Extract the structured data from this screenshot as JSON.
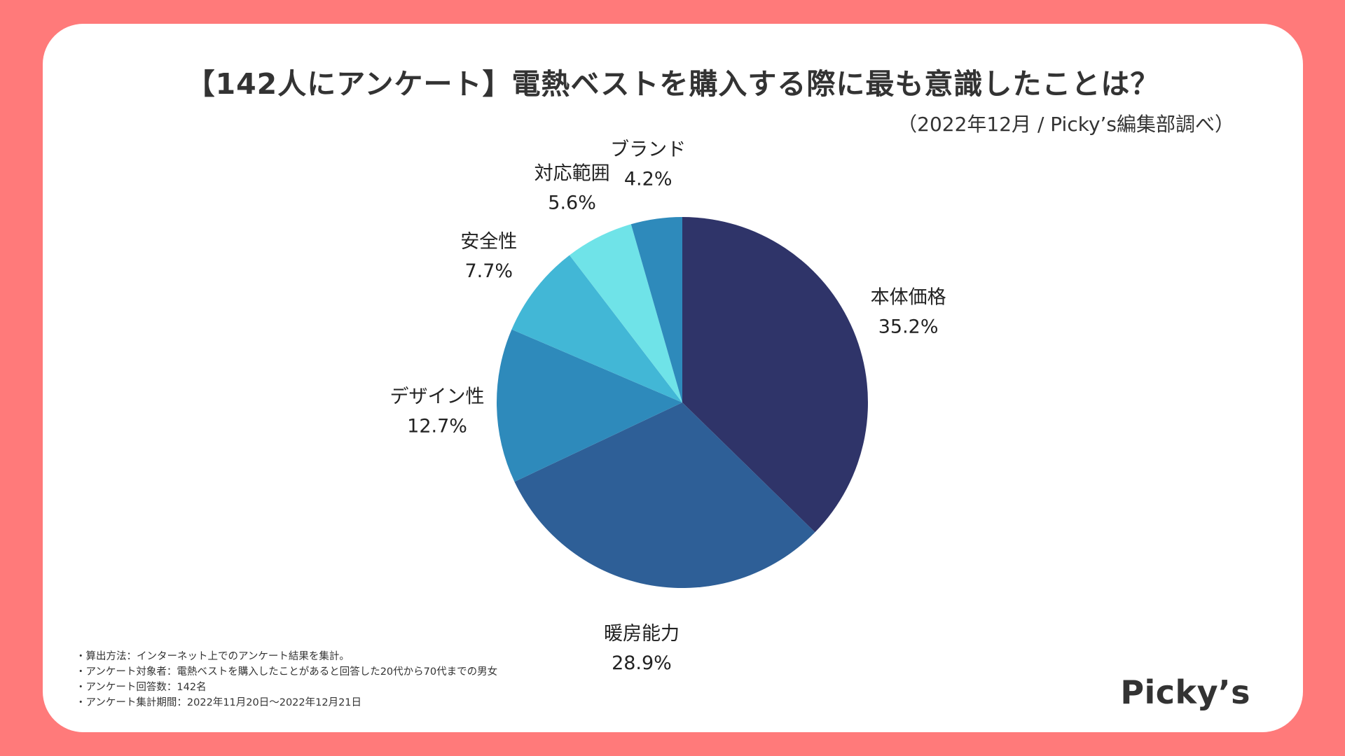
{
  "header": {
    "title": "【142人にアンケート】電熱ベストを購入する際に最も意識したことは？",
    "subtitle": "（2022年12月 / Picky’s編集部調べ）"
  },
  "chart_data": {
    "type": "pie",
    "unit": "%",
    "slices": [
      {
        "label": "本体価格",
        "value": 35.2,
        "value_label": "35.2%",
        "color": "#2f3469"
      },
      {
        "label": "暖房能力",
        "value": 28.9,
        "value_label": "28.9%",
        "color": "#2e5f97"
      },
      {
        "label": "デザイン性",
        "value": 12.7,
        "value_label": "12.7%",
        "color": "#2e8abb"
      },
      {
        "label": "安全性",
        "value": 7.7,
        "value_label": "7.7%",
        "color": "#42b7d6"
      },
      {
        "label": "対応範囲",
        "value": 5.6,
        "value_label": "5.6%",
        "color": "#6fe3e8"
      },
      {
        "label": "ブランド",
        "value": 4.2,
        "value_label": "4.2%",
        "color": "#2e8abb"
      }
    ],
    "legend": "none"
  },
  "notes": [
    "・算出方法：インターネット上でのアンケート結果を集計。",
    "・アンケート対象者：電熱ベストを購入したことがあると回答した20代から70代までの男女",
    "・アンケート回答数：142名",
    "・アンケート集計期間：2022年11月20日〜2022年12月21日"
  ],
  "logo_text": "Picky’s",
  "colors": {
    "background": "#ff7a7a",
    "card": "#ffffff"
  }
}
